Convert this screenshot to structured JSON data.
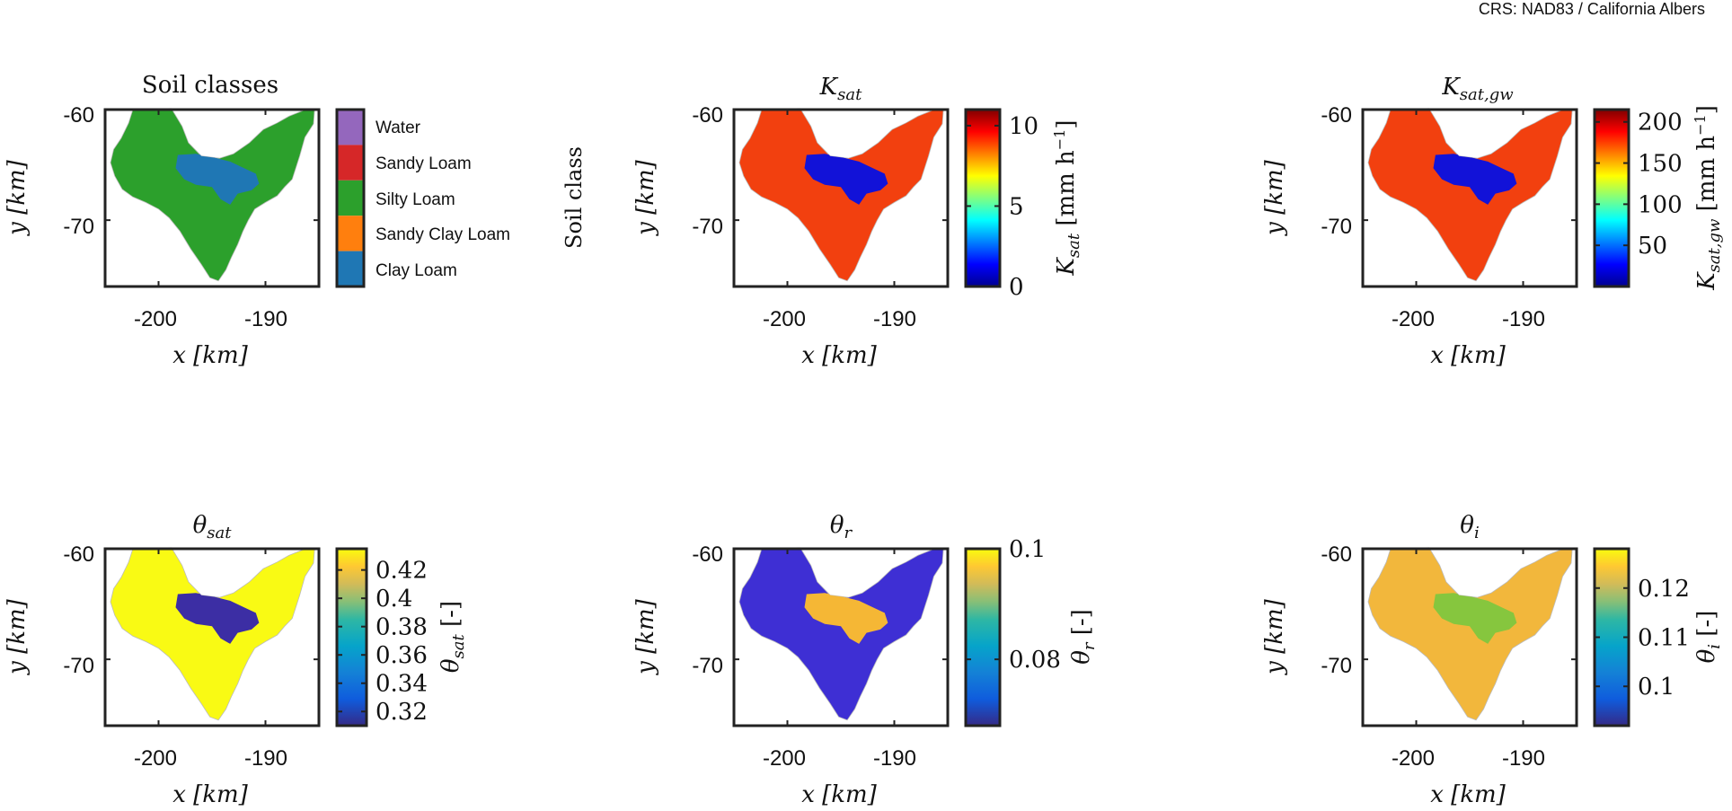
{
  "crs_label": "CRS: NAD83 / California Albers",
  "chart_data": [
    {
      "type": "heatmap",
      "title": "Soil classes",
      "xlabel": "x [km]",
      "ylabel": "y [km]",
      "xlim": [
        -205,
        -185
      ],
      "ylim": [
        -76,
        -60
      ],
      "xticks": [
        -200,
        -190
      ],
      "xtick_labels": [
        "-200",
        "-190"
      ],
      "yticks": [
        -60,
        -70
      ],
      "ytick_labels": [
        "-60",
        "-70"
      ],
      "colorbar": {
        "type": "categorical",
        "label": "Soil class",
        "categories": [
          "Water",
          "Sandy Loam",
          "Silty Loam",
          "Sandy Clay Loam",
          "Clay Loam"
        ],
        "colors": [
          "#9467bd",
          "#d62728",
          "#2ca02c",
          "#ff7f0e",
          "#1f77b4"
        ]
      },
      "fill_color": "#2ca02c",
      "patch_color": "#1f77b4"
    },
    {
      "type": "heatmap",
      "title": "K_sat",
      "xlabel": "x [km]",
      "ylabel": "y [km]",
      "xlim": [
        -205,
        -185
      ],
      "ylim": [
        -76,
        -60
      ],
      "xticks": [
        -200,
        -190
      ],
      "xtick_labels": [
        "-200",
        "-190"
      ],
      "yticks": [
        -60,
        -70
      ],
      "ytick_labels": [
        "-60",
        "-70"
      ],
      "colorbar": {
        "type": "continuous",
        "colormap": "jet",
        "label": "K_sat [mm h^-1]",
        "range": [
          0,
          11
        ],
        "ticks": [
          0,
          5,
          10
        ],
        "tick_labels": [
          "0",
          "5",
          "10"
        ]
      },
      "fill_color": "#f2400f",
      "patch_color": "#1212d8"
    },
    {
      "type": "heatmap",
      "title": "K_sat,gw",
      "xlabel": "x [km]",
      "ylabel": "y [km]",
      "xlim": [
        -205,
        -185
      ],
      "ylim": [
        -76,
        -60
      ],
      "xticks": [
        -200,
        -190
      ],
      "xtick_labels": [
        "-200",
        "-190"
      ],
      "yticks": [
        -60,
        -70
      ],
      "ytick_labels": [
        "-60",
        "-70"
      ],
      "colorbar": {
        "type": "continuous",
        "colormap": "jet",
        "label": "K_sat,gw [mm h^-1]",
        "range": [
          0,
          215
        ],
        "ticks": [
          50,
          100,
          150,
          200
        ],
        "tick_labels": [
          "50",
          "100",
          "150",
          "200"
        ]
      },
      "fill_color": "#f2400f",
      "patch_color": "#1212d8"
    },
    {
      "type": "heatmap",
      "title": "θ_sat",
      "xlabel": "x [km]",
      "ylabel": "y [km]",
      "xlim": [
        -205,
        -185
      ],
      "ylim": [
        -76,
        -60
      ],
      "xticks": [
        -200,
        -190
      ],
      "xtick_labels": [
        "-200",
        "-190"
      ],
      "yticks": [
        -60,
        -70
      ],
      "ytick_labels": [
        "-60",
        "-70"
      ],
      "colorbar": {
        "type": "continuous",
        "colormap": "parula",
        "label": "θ_sat [-]",
        "range": [
          0.31,
          0.435
        ],
        "ticks": [
          0.32,
          0.34,
          0.36,
          0.38,
          0.4,
          0.42
        ],
        "tick_labels": [
          "0.32",
          "0.34",
          "0.36",
          "0.38",
          "0.4",
          "0.42"
        ]
      },
      "fill_color": "#f9fa14",
      "patch_color": "#3c2ea4"
    },
    {
      "type": "heatmap",
      "title": "θ_r",
      "xlabel": "x [km]",
      "ylabel": "y [km]",
      "xlim": [
        -205,
        -185
      ],
      "ylim": [
        -76,
        -60
      ],
      "xticks": [
        -200,
        -190
      ],
      "xtick_labels": [
        "-200",
        "-190"
      ],
      "yticks": [
        -60,
        -70
      ],
      "ytick_labels": [
        "-60",
        "-70"
      ],
      "colorbar": {
        "type": "continuous",
        "colormap": "parula",
        "label": "θ_r [-]",
        "range": [
          0.068,
          0.1
        ],
        "ticks": [
          0.08,
          0.1
        ],
        "tick_labels": [
          "0.08",
          "0.1"
        ]
      },
      "fill_color": "#3e2fd4",
      "patch_color": "#f5b735"
    },
    {
      "type": "heatmap",
      "title": "θ_i",
      "xlabel": "x [km]",
      "ylabel": "y [km]",
      "xlim": [
        -205,
        -185
      ],
      "ylim": [
        -76,
        -60
      ],
      "xticks": [
        -200,
        -190
      ],
      "xtick_labels": [
        "-200",
        "-190"
      ],
      "yticks": [
        -60,
        -70
      ],
      "ytick_labels": [
        "-60",
        "-70"
      ],
      "colorbar": {
        "type": "continuous",
        "colormap": "parula",
        "label": "θ_i [-]",
        "range": [
          0.092,
          0.128
        ],
        "ticks": [
          0.1,
          0.11,
          0.12
        ],
        "tick_labels": [
          "0.1",
          "0.11",
          "0.12"
        ]
      },
      "fill_color": "#f2b73c",
      "patch_color": "#86c63e"
    }
  ]
}
